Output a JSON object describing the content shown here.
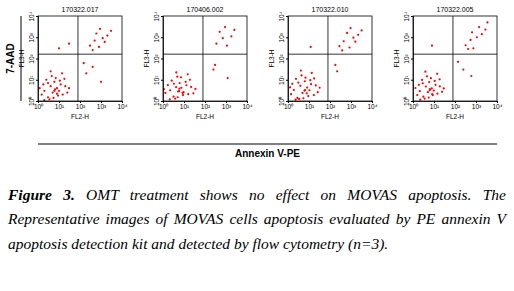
{
  "chart_data": [
    {
      "type": "scatter",
      "title": "170322.017",
      "x_label": "FL2-H",
      "y_label": "FL3-H",
      "log": true,
      "color": "#ff0000",
      "xlim": [
        1,
        10000
      ],
      "ylim": [
        1,
        10000
      ],
      "xticks": [
        {
          "value": 1,
          "label": "10⁰"
        },
        {
          "value": 10,
          "label": "10¹"
        },
        {
          "value": 100,
          "label": "10²"
        },
        {
          "value": 1000,
          "label": "10³"
        },
        {
          "value": 10000,
          "label": "10⁴"
        }
      ],
      "yticks": [
        {
          "value": 1,
          "label": "10⁰"
        },
        {
          "value": 10,
          "label": "10¹"
        },
        {
          "value": 100,
          "label": "10²"
        },
        {
          "value": 1000,
          "label": "10³"
        },
        {
          "value": 10000,
          "label": "10⁴"
        }
      ],
      "quadrant_x": 80,
      "quadrant_y": 160,
      "x": [
        1.5,
        2,
        3,
        4,
        5,
        6,
        8,
        10,
        12,
        15,
        2.5,
        3.5,
        7,
        9,
        1.2,
        4.5,
        6.5,
        20,
        25,
        3,
        5.5,
        11,
        14,
        2,
        8,
        1.8,
        30,
        18,
        4,
        6,
        300,
        500,
        800,
        1200,
        600,
        2000,
        400,
        900,
        1500,
        3000,
        200,
        400,
        1000,
        150,
        10,
        30
      ],
      "values": [
        2,
        3,
        1.5,
        5,
        2.5,
        8,
        4,
        3,
        6,
        2,
        10,
        1.2,
        12,
        1.8,
        4,
        15,
        3.5,
        5,
        2.5,
        7,
        1.4,
        9,
        20,
        1.1,
        2.2,
        6,
        4,
        11,
        25,
        3,
        400,
        700,
        350,
        900,
        1500,
        1200,
        250,
        2500,
        600,
        2000,
        20,
        40,
        8,
        60,
        300,
        500
      ]
    },
    {
      "type": "scatter",
      "title": "170406.002",
      "x_label": "FL2-H",
      "y_label": "FL3-H",
      "log": true,
      "color": "#ff0000",
      "xlim": [
        1,
        10000
      ],
      "ylim": [
        1,
        10000
      ],
      "xticks": [
        {
          "value": 1,
          "label": "10⁰"
        },
        {
          "value": 10,
          "label": "10¹"
        },
        {
          "value": 100,
          "label": "10²"
        },
        {
          "value": 1000,
          "label": "10³"
        },
        {
          "value": 10000,
          "label": "10⁴"
        }
      ],
      "yticks": [
        {
          "value": 1,
          "label": "10⁰"
        },
        {
          "value": 10,
          "label": "10¹"
        },
        {
          "value": 100,
          "label": "10²"
        },
        {
          "value": 1000,
          "label": "10³"
        },
        {
          "value": 10000,
          "label": "10⁴"
        }
      ],
      "quadrant_x": 80,
      "quadrant_y": 160,
      "x": [
        1.3,
        2.2,
        3.2,
        4.2,
        5.2,
        6.2,
        7.5,
        9.5,
        13,
        16,
        2.6,
        3.8,
        7.2,
        9,
        1.1,
        4.8,
        6,
        22,
        28,
        3.3,
        5,
        12,
        15,
        2.1,
        8.5,
        1.7,
        35,
        19,
        4.3,
        5.8,
        350,
        700,
        1100,
        500,
        1800,
        900,
        2500,
        250,
        300,
        1200
      ],
      "values": [
        2.4,
        3.2,
        1.6,
        4.5,
        2.8,
        7,
        4.2,
        2.6,
        5.5,
        2.1,
        9,
        1.3,
        13,
        1.9,
        3.6,
        14,
        3.8,
        4.6,
        2.3,
        6.5,
        1.5,
        8,
        18,
        1.2,
        2.4,
        5.6,
        3.7,
        10,
        22,
        2.9,
        500,
        900,
        400,
        1800,
        1100,
        3000,
        2200,
        30,
        50,
        12
      ]
    },
    {
      "type": "scatter",
      "title": "170322.010",
      "x_label": "FL2-H",
      "y_label": "FL3-H",
      "log": true,
      "color": "#ff0000",
      "xlim": [
        1,
        10000
      ],
      "ylim": [
        1,
        10000
      ],
      "xticks": [
        {
          "value": 1,
          "label": "10⁰"
        },
        {
          "value": 10,
          "label": "10¹"
        },
        {
          "value": 100,
          "label": "10²"
        },
        {
          "value": 1000,
          "label": "10³"
        },
        {
          "value": 10000,
          "label": "10⁴"
        }
      ],
      "yticks": [
        {
          "value": 1,
          "label": "10⁰"
        },
        {
          "value": 10,
          "label": "10¹"
        },
        {
          "value": 100,
          "label": "10²"
        },
        {
          "value": 1000,
          "label": "10³"
        },
        {
          "value": 10000,
          "label": "10⁴"
        }
      ],
      "quadrant_x": 80,
      "quadrant_y": 160,
      "x": [
        1.4,
        1.9,
        2.8,
        3.9,
        4.9,
        6.3,
        8.2,
        10.5,
        12.5,
        17,
        2.4,
        3.4,
        6.8,
        9.2,
        1.25,
        4.4,
        6.6,
        21,
        26,
        3.1,
        5.4,
        11.5,
        13.5,
        2.3,
        7.8,
        1.6,
        32,
        17.5,
        4.1,
        6.1,
        280,
        450,
        850,
        1300,
        650,
        2200,
        380,
        950,
        1600,
        3200,
        220,
        180,
        12
      ],
      "values": [
        2.1,
        3.3,
        1.4,
        5.2,
        2.4,
        8.5,
        4.3,
        3.2,
        6.2,
        1.9,
        11,
        1.25,
        12.5,
        1.7,
        4.4,
        16,
        3.3,
        5.4,
        2.6,
        7.4,
        1.35,
        9.5,
        21,
        1.15,
        2.3,
        6.4,
        4.2,
        11.5,
        27,
        3.1,
        380,
        650,
        330,
        950,
        1600,
        1300,
        240,
        2700,
        620,
        2100,
        25,
        50,
        350
      ]
    },
    {
      "type": "scatter",
      "title": "170322.005",
      "x_label": "FL2-H",
      "y_label": "FL3-H",
      "log": true,
      "color": "#ff0000",
      "xlim": [
        1,
        10000
      ],
      "ylim": [
        1,
        10000
      ],
      "xticks": [
        {
          "value": 1,
          "label": "10⁰"
        },
        {
          "value": 10,
          "label": "10¹"
        },
        {
          "value": 100,
          "label": "10²"
        },
        {
          "value": 1000,
          "label": "10³"
        },
        {
          "value": 10000,
          "label": "10⁴"
        }
      ],
      "yticks": [
        {
          "value": 1,
          "label": "10⁰"
        },
        {
          "value": 10,
          "label": "10¹"
        },
        {
          "value": 100,
          "label": "10²"
        },
        {
          "value": 1000,
          "label": "10³"
        },
        {
          "value": 10000,
          "label": "10⁴"
        }
      ],
      "quadrant_x": 80,
      "quadrant_y": 160,
      "x": [
        1.6,
        2.1,
        3.1,
        4.1,
        5.1,
        5.9,
        7.8,
        9.8,
        11.8,
        14.5,
        2.7,
        3.6,
        7.1,
        8.8,
        1.3,
        4.6,
        6.4,
        19,
        24,
        2.9,
        5.6,
        10.8,
        14.2,
        2.2,
        8.2,
        1.9,
        29,
        18.5,
        3.9,
        6.2,
        320,
        550,
        750,
        1100,
        1900,
        2800,
        420,
        1400,
        650,
        3500,
        250,
        600,
        140,
        8
      ],
      "values": [
        1.9,
        2.9,
        1.6,
        4.8,
        2.6,
        7.8,
        3.9,
        3.1,
        5.8,
        2.2,
        9.8,
        1.3,
        11.8,
        1.9,
        4.1,
        14.5,
        3.6,
        4.9,
        2.7,
        6.8,
        1.45,
        8.8,
        19,
        1.15,
        2.1,
        5.8,
        3.9,
        10.5,
        24,
        3.2,
        420,
        750,
        300,
        1000,
        1400,
        2300,
        280,
        3000,
        1700,
        5000,
        30,
        15,
        70,
        400
      ]
    }
  ],
  "figure": {
    "y_title": "7-AAD",
    "x_title": "Annexin V-PE",
    "caption_label": "Figure 3.",
    "caption": "OMT treatment shows no effect on MOVAS apoptosis. The Representative images of MOVAS cells apoptosis evaluated by PE annexin V apoptosis detection kit and detected by flow cytometry (n=3)."
  }
}
